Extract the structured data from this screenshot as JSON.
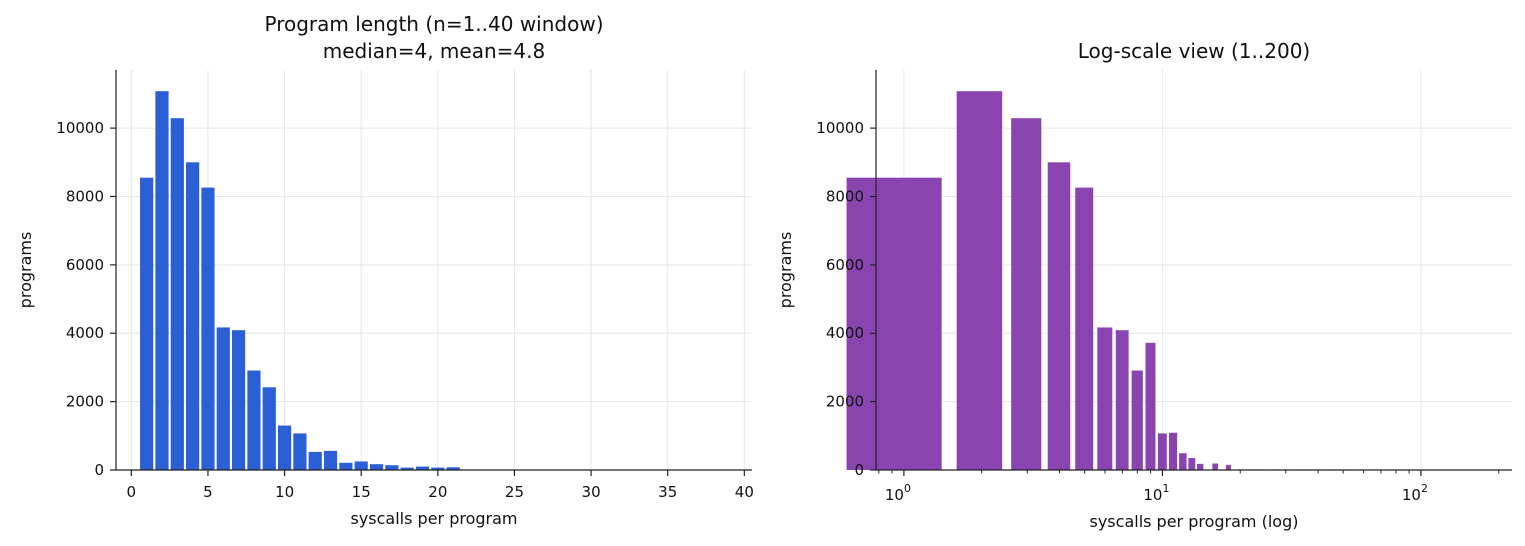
{
  "chart_data": [
    {
      "type": "bar",
      "title": "Program length (n=1..40 window)",
      "subtitle": "median=4, mean=4.8",
      "xlabel": "syscalls per program",
      "ylabel": "programs",
      "x": [
        1,
        2,
        3,
        4,
        5,
        6,
        7,
        8,
        9,
        10,
        11,
        12,
        13,
        14,
        15,
        16,
        17,
        18,
        19,
        20,
        21
      ],
      "values": [
        8550,
        11080,
        10290,
        9000,
        8260,
        4170,
        4090,
        2910,
        2420,
        1300,
        1070,
        530,
        560,
        210,
        250,
        170,
        140,
        70,
        100,
        70,
        80
      ],
      "xlim": [
        -1,
        40.5
      ],
      "ylim": [
        0,
        11700
      ],
      "xticks": [
        0,
        5,
        10,
        15,
        20,
        25,
        30,
        35,
        40
      ],
      "yticks": [
        0,
        2000,
        4000,
        6000,
        8000,
        10000
      ],
      "grid": true,
      "color": "#2b5fd6"
    },
    {
      "type": "bar",
      "title": "Log-scale view (1..200)",
      "xlabel": "syscalls per program (log)",
      "ylabel": "programs",
      "x_scale": "log",
      "x": [
        1,
        2,
        3,
        4,
        5,
        6,
        7,
        8,
        9,
        10,
        11,
        12,
        13,
        14,
        16,
        18,
        20,
        22,
        24,
        27,
        30,
        33,
        36,
        40,
        44,
        48,
        53,
        58,
        64,
        70,
        77,
        85,
        93,
        102,
        112,
        123,
        136,
        150,
        165,
        181,
        199
      ],
      "values": [
        8550,
        11080,
        10290,
        9000,
        8260,
        4170,
        4090,
        2910,
        3720,
        1070,
        1090,
        490,
        350,
        180,
        190,
        150,
        0,
        0,
        0,
        0,
        0,
        0,
        0,
        0,
        0,
        0,
        0,
        0,
        0,
        0,
        0,
        0,
        0,
        0,
        0,
        0,
        0,
        0,
        0,
        0,
        0
      ],
      "xlim": [
        0.78,
        225
      ],
      "ylim": [
        0,
        11700
      ],
      "xticks": [
        1,
        10,
        100
      ],
      "xtick_labels": [
        {
          "base": "10",
          "exp": "0"
        },
        {
          "base": "10",
          "exp": "1"
        },
        {
          "base": "10",
          "exp": "2"
        }
      ],
      "yticks": [
        0,
        2000,
        4000,
        6000,
        8000,
        10000
      ],
      "grid": true,
      "color": "#8a44b0"
    }
  ]
}
